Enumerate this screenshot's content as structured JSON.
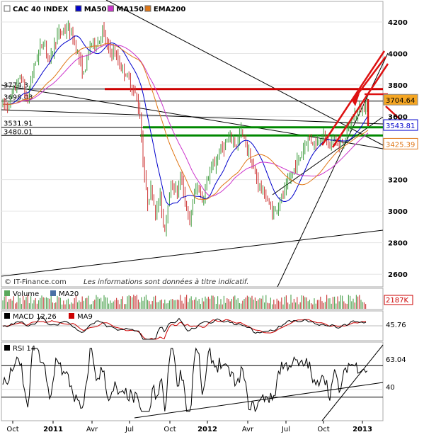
{
  "chart_data": {
    "type": "line",
    "title": "CAC 40 INDEX",
    "legend": [
      {
        "name": "CAC 40 INDEX",
        "color": "#ffffff"
      },
      {
        "name": "MA50",
        "color": "#0000cc"
      },
      {
        "name": "MA150",
        "color": "#cc33cc"
      },
      {
        "name": "EMA200",
        "color": "#e07818"
      }
    ],
    "credit": "© IT-Finance.com",
    "disclaimer": "Les informations sont données à titre indicatif.",
    "price_axis": {
      "ylim": [
        2520,
        4330
      ],
      "ticks": [
        {
          "value": 4200,
          "label": "4200"
        },
        {
          "value": 4000,
          "label": "4000"
        },
        {
          "value": 3800,
          "label": "3800"
        },
        {
          "value": 3600,
          "label": "3600"
        },
        {
          "value": 3200,
          "label": "3200"
        },
        {
          "value": 3000,
          "label": "3000"
        },
        {
          "value": 2800,
          "label": "2800"
        },
        {
          "value": 2600,
          "label": "2600"
        }
      ]
    },
    "price_levels": [
      {
        "value": 3774.3,
        "label": "3774.3",
        "color": "#cc0000"
      },
      {
        "value": 3698.08,
        "label": "3698.08",
        "color": "#000000"
      },
      {
        "value": 3531.91,
        "label": "3531.91",
        "color": "#008800"
      },
      {
        "value": 3480.01,
        "label": "3480.01",
        "color": "#008800"
      }
    ],
    "last_values": [
      {
        "name": "CAC 40 INDEX",
        "value": 3704.64,
        "label": "3704.64",
        "color": "#000000",
        "bg": "#f5a623"
      },
      {
        "name": "MA50",
        "value": 3543.81,
        "label": "3543.81",
        "color": "#0000cc",
        "bg": "#ffffff"
      },
      {
        "name": "EMA200",
        "value": 3425.39,
        "label": "3425.39",
        "color": "#e07818",
        "bg": "#ffffff"
      }
    ],
    "x_ticks": [
      {
        "label": "Oct",
        "bold": false
      },
      {
        "label": "2011",
        "bold": true
      },
      {
        "label": "Avr",
        "bold": false
      },
      {
        "label": "Jul",
        "bold": false
      },
      {
        "label": "Oct",
        "bold": false
      },
      {
        "label": "2012",
        "bold": true
      },
      {
        "label": "Avr",
        "bold": false
      },
      {
        "label": "Jul",
        "bold": false
      },
      {
        "label": "Oct",
        "bold": false
      },
      {
        "label": "2013",
        "bold": true
      }
    ],
    "price_anchors": [
      [
        0,
        3690
      ],
      [
        10,
        3660
      ],
      [
        20,
        3770
      ],
      [
        30,
        3860
      ],
      [
        38,
        3680
      ],
      [
        45,
        3870
      ],
      [
        55,
        4020
      ],
      [
        62,
        4080
      ],
      [
        70,
        3950
      ],
      [
        80,
        4110
      ],
      [
        88,
        4140
      ],
      [
        95,
        4160
      ],
      [
        102,
        4110
      ],
      [
        108,
        4030
      ],
      [
        118,
        3860
      ],
      [
        128,
        4070
      ],
      [
        138,
        4060
      ],
      [
        145,
        4150
      ],
      [
        152,
        4030
      ],
      [
        162,
        4000
      ],
      [
        170,
        3920
      ],
      [
        178,
        3870
      ],
      [
        186,
        3790
      ],
      [
        193,
        3720
      ],
      [
        198,
        3590
      ],
      [
        202,
        3320
      ],
      [
        208,
        3050
      ],
      [
        214,
        3150
      ],
      [
        220,
        2980
      ],
      [
        226,
        3100
      ],
      [
        232,
        2860
      ],
      [
        238,
        3090
      ],
      [
        244,
        3170
      ],
      [
        250,
        3120
      ],
      [
        256,
        3220
      ],
      [
        262,
        3050
      ],
      [
        268,
        2920
      ],
      [
        274,
        3110
      ],
      [
        280,
        3160
      ],
      [
        286,
        3060
      ],
      [
        292,
        3190
      ],
      [
        298,
        3260
      ],
      [
        304,
        3300
      ],
      [
        310,
        3380
      ],
      [
        318,
        3420
      ],
      [
        326,
        3470
      ],
      [
        334,
        3420
      ],
      [
        340,
        3510
      ],
      [
        346,
        3440
      ],
      [
        352,
        3360
      ],
      [
        358,
        3260
      ],
      [
        364,
        3190
      ],
      [
        370,
        3130
      ],
      [
        376,
        3090
      ],
      [
        382,
        3010
      ],
      [
        388,
        2990
      ],
      [
        394,
        3060
      ],
      [
        400,
        3100
      ],
      [
        406,
        3170
      ],
      [
        412,
        3230
      ],
      [
        418,
        3300
      ],
      [
        424,
        3340
      ],
      [
        430,
        3420
      ],
      [
        436,
        3470
      ],
      [
        442,
        3440
      ],
      [
        448,
        3430
      ],
      [
        454,
        3490
      ],
      [
        460,
        3460
      ],
      [
        466,
        3410
      ],
      [
        472,
        3480
      ],
      [
        478,
        3400
      ],
      [
        484,
        3440
      ],
      [
        490,
        3500
      ],
      [
        496,
        3560
      ],
      [
        502,
        3610
      ],
      [
        508,
        3640
      ],
      [
        514,
        3660
      ],
      [
        519,
        3700
      ]
    ],
    "rsi": {
      "label": "RSI 14",
      "last": 63.04,
      "last_label": "63.04",
      "ylim": [
        0,
        100
      ],
      "tick": {
        "value": 40,
        "label": "40"
      },
      "levels": [
        70,
        30
      ]
    },
    "volume": {
      "label": "Volume",
      "ma_label": "MA20",
      "last_label": "2187K"
    },
    "macd": {
      "label": "MACD 12,26",
      "signal_label": "MA9",
      "last_label": "45.76"
    },
    "arrow_annotations": "red",
    "trendlines": "black, green, red"
  }
}
